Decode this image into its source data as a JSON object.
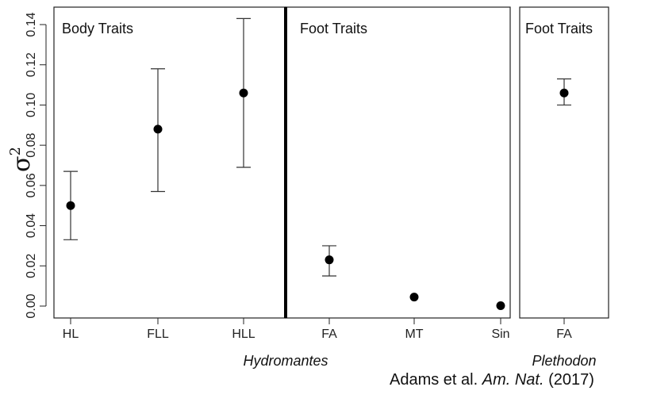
{
  "chart_data": {
    "type": "scatter",
    "ylabel": "σ²",
    "ylim": [
      0,
      0.14
    ],
    "yticks": [
      "0.00",
      "0.02",
      "0.04",
      "0.06",
      "0.08",
      "0.10",
      "0.12",
      "0.14"
    ],
    "panels": [
      {
        "title": "Body Traits",
        "categories": [
          "HL",
          "FLL",
          "HLL"
        ],
        "points": [
          {
            "category": "HL",
            "value": 0.05,
            "lower": 0.033,
            "upper": 0.067
          },
          {
            "category": "FLL",
            "value": 0.088,
            "lower": 0.057,
            "upper": 0.118
          },
          {
            "category": "HLL",
            "value": 0.106,
            "lower": 0.069,
            "upper": 0.143
          }
        ]
      },
      {
        "title": "Foot Traits",
        "categories": [
          "FA",
          "MT",
          "Sin"
        ],
        "points": [
          {
            "category": "FA",
            "value": 0.023,
            "lower": 0.015,
            "upper": 0.03
          },
          {
            "category": "MT",
            "value": 0.0045,
            "lower": 0.004,
            "upper": 0.005
          },
          {
            "category": "Sin",
            "value": 0.0002,
            "lower": 0.0,
            "upper": 0.0004
          }
        ]
      },
      {
        "title": "Foot Traits",
        "categories": [
          "FA"
        ],
        "points": [
          {
            "category": "FA",
            "value": 0.106,
            "lower": 0.1,
            "upper": 0.113
          }
        ]
      }
    ],
    "group_labels": [
      "Hydromantes",
      "Plethodon"
    ]
  },
  "citation": {
    "authors": "Adams et al.",
    "journal": "Am. Nat.",
    "year": "(2017)"
  }
}
